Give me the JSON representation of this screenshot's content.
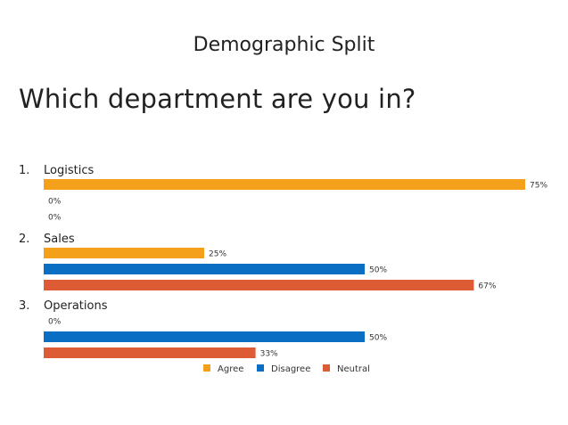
{
  "slide": {
    "heading": "Demographic Split",
    "question": "Which department are you in?"
  },
  "chart_data": {
    "type": "bar",
    "orientation": "horizontal",
    "xlim": [
      0,
      100
    ],
    "value_format": "percent",
    "categories": [
      "Logistics",
      "Sales",
      "Operations"
    ],
    "category_numbers": [
      "1.",
      "2.",
      "3."
    ],
    "series": [
      {
        "name": "Agree",
        "color": "#f5a01a",
        "values": [
          75,
          25,
          0
        ]
      },
      {
        "name": "Disagree",
        "color": "#0a6fc2",
        "values": [
          0,
          50,
          50
        ]
      },
      {
        "name": "Neutral",
        "color": "#dd5b35",
        "values": [
          0,
          67,
          33
        ]
      }
    ],
    "legend": {
      "position": "bottom",
      "entries": [
        "Agree",
        "Disagree",
        "Neutral"
      ]
    }
  }
}
